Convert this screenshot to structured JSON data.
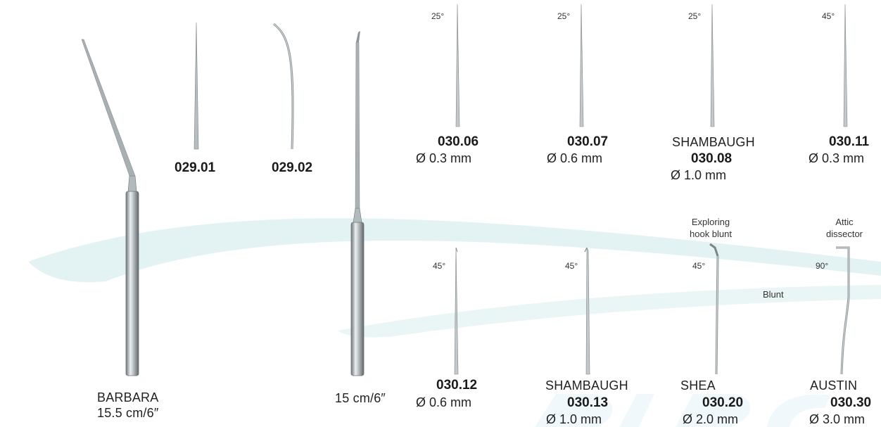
{
  "colors": {
    "swoosh": "#e3f3f3",
    "watermark": "#f1f8fb",
    "steel_dark": "#6f7679",
    "steel_light": "#e9eef0"
  },
  "instruments": {
    "barbara": {
      "name": "BARBARA",
      "length": "15.5 cm/6″"
    },
    "i02901": {
      "code": "029.01"
    },
    "i02902": {
      "code": "029.02"
    },
    "handle2": {
      "length": "15 cm/6″"
    },
    "i03006": {
      "angle": "25°",
      "code": "030.06",
      "diameter": "Ø 0.3 mm"
    },
    "i03007": {
      "angle": "25°",
      "code": "030.07",
      "diameter": "Ø 0.6 mm"
    },
    "i03008": {
      "angle": "25°",
      "name": "SHAMBAUGH",
      "code": "030.08",
      "diameter": "Ø 1.0 mm"
    },
    "i03011": {
      "angle": "45°",
      "code": "030.11",
      "diameter": "Ø 0.3 mm"
    },
    "i03012": {
      "angle": "45°",
      "code": "030.12",
      "diameter": "Ø 0.6 mm"
    },
    "i03013": {
      "angle": "45°",
      "name": "SHAMBAUGH",
      "code": "030.13",
      "diameter": "Ø 1.0 mm"
    },
    "i03020": {
      "note1": "Exploring",
      "note2": "hook blunt",
      "angle": "45°",
      "side_note": "Blunt",
      "name": "SHEA",
      "code": "030.20",
      "diameter": "Ø 2.0 mm"
    },
    "i03030": {
      "note1": "Attic",
      "note2": "dissector",
      "angle": "90°",
      "name": "AUSTIN",
      "code": "030.30",
      "diameter": "Ø 3.0 mm"
    }
  }
}
